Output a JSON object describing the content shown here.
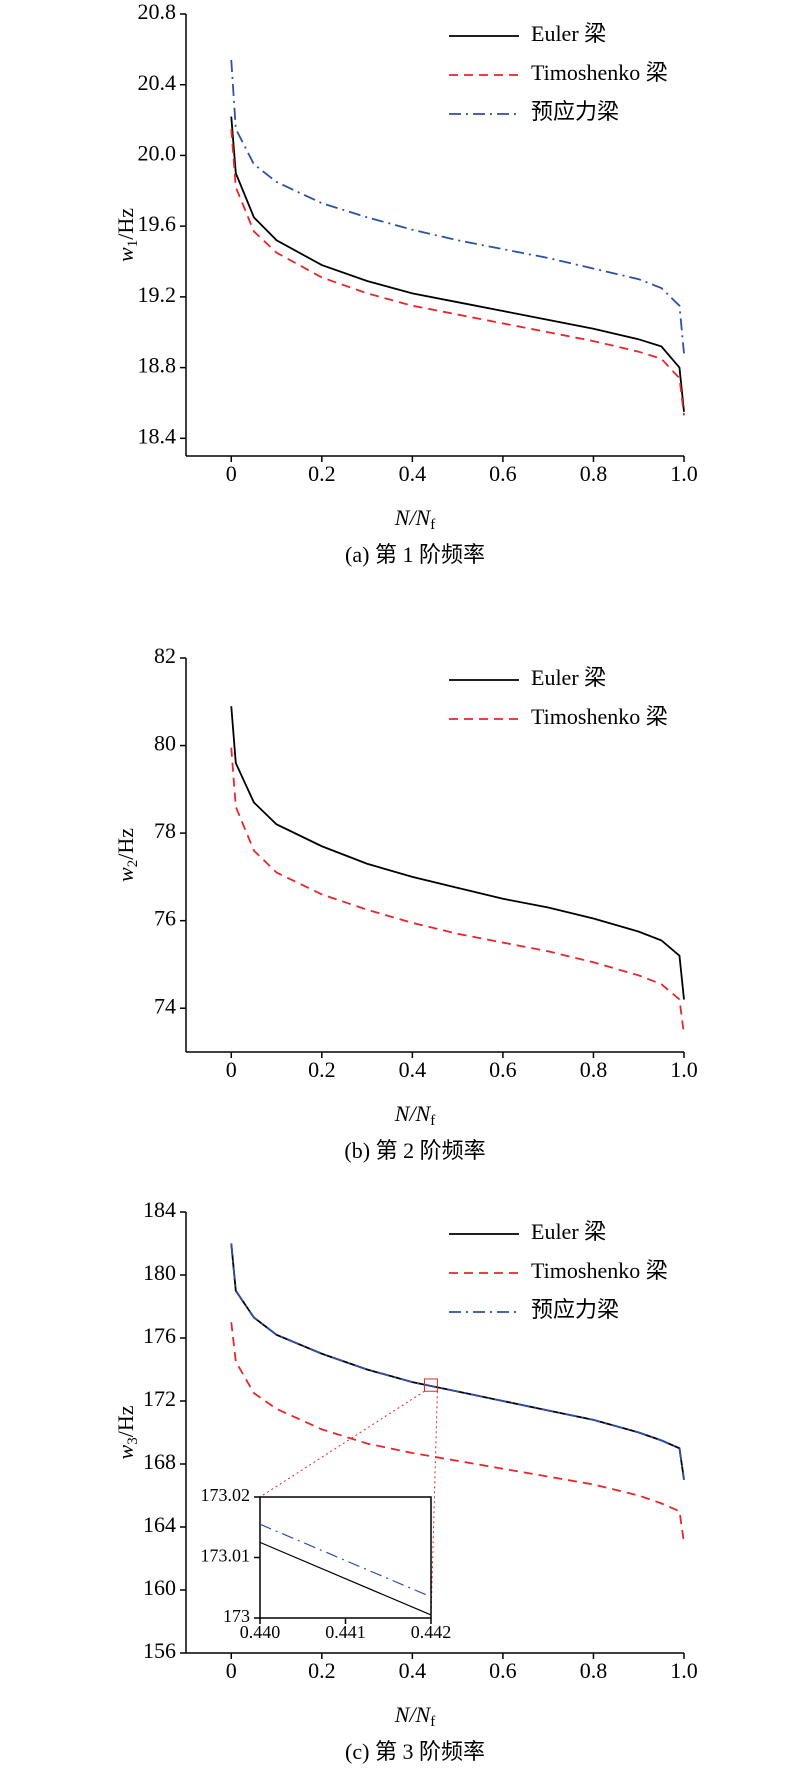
{
  "chart_data": [
    {
      "type": "line",
      "legend": "upper right",
      "ylabel": {
        "symbol": "w",
        "sub": "1",
        "unit": "/Hz"
      },
      "xlabel": {
        "symbol": "N/N",
        "sub": "f"
      },
      "caption": "(a) 第 1 阶频率",
      "x": [
        0,
        0.01,
        0.05,
        0.1,
        0.2,
        0.3,
        0.4,
        0.5,
        0.6,
        0.7,
        0.8,
        0.9,
        0.95,
        0.99,
        1.0
      ],
      "series": [
        {
          "name": "Euler 梁",
          "color": "#000000",
          "linestyle": "solid",
          "values": [
            20.22,
            19.9,
            19.65,
            19.52,
            19.38,
            19.29,
            19.22,
            19.17,
            19.12,
            19.07,
            19.02,
            18.96,
            18.92,
            18.8,
            18.55
          ]
        },
        {
          "name": "Timoshenko 梁",
          "color": "#e8262a",
          "linestyle": "dashed",
          "values": [
            20.15,
            19.82,
            19.57,
            19.45,
            19.31,
            19.22,
            19.15,
            19.1,
            19.05,
            19.0,
            18.95,
            18.89,
            18.85,
            18.74,
            18.53
          ]
        },
        {
          "name": "预应力梁",
          "color": "#2e4fa6",
          "linestyle": "dashdot",
          "values": [
            20.54,
            20.15,
            19.95,
            19.85,
            19.73,
            19.65,
            19.58,
            19.52,
            19.47,
            19.42,
            19.36,
            19.3,
            19.25,
            19.15,
            18.88
          ]
        }
      ],
      "xlim": [
        -0.1,
        1.0
      ],
      "xticks": [
        0,
        0.2,
        0.4,
        0.6,
        0.8,
        {
          "value": 1,
          "label": "1.0"
        }
      ],
      "ylim": [
        18.3,
        20.8
      ],
      "yticks": [
        18.4,
        18.8,
        19.2,
        19.6,
        {
          "value": 20,
          "label": "20.0"
        },
        20.4,
        20.8
      ]
    },
    {
      "type": "line",
      "legend": "upper right",
      "ylabel": {
        "symbol": "w",
        "sub": "2",
        "unit": "/Hz"
      },
      "xlabel": {
        "symbol": "N/N",
        "sub": "f"
      },
      "caption": "(b) 第 2 阶频率",
      "x": [
        0,
        0.01,
        0.05,
        0.1,
        0.2,
        0.3,
        0.4,
        0.5,
        0.6,
        0.7,
        0.8,
        0.9,
        0.95,
        0.99,
        1.0
      ],
      "series": [
        {
          "name": "Euler 梁",
          "color": "#000000",
          "linestyle": "solid",
          "values": [
            80.9,
            79.6,
            78.7,
            78.2,
            77.7,
            77.3,
            77.0,
            76.75,
            76.5,
            76.3,
            76.05,
            75.75,
            75.55,
            75.2,
            74.2
          ]
        },
        {
          "name": "Timoshenko 梁",
          "color": "#e8262a",
          "linestyle": "dashed",
          "values": [
            79.95,
            78.6,
            77.6,
            77.1,
            76.6,
            76.25,
            75.95,
            75.7,
            75.5,
            75.3,
            75.05,
            74.75,
            74.55,
            74.2,
            73.4
          ]
        }
      ],
      "xlim": [
        -0.1,
        1.0
      ],
      "xticks": [
        0,
        0.2,
        0.4,
        0.6,
        0.8,
        {
          "value": 1,
          "label": "1.0"
        }
      ],
      "ylim": [
        73,
        82
      ],
      "yticks": [
        74,
        76,
        78,
        80,
        82
      ]
    },
    {
      "type": "line",
      "legend": "upper right",
      "ylabel": {
        "symbol": "w",
        "sub": "3",
        "unit": "/Hz"
      },
      "xlabel": {
        "symbol": "N/N",
        "sub": "f"
      },
      "caption": "(c) 第 3 阶频率",
      "x": [
        0,
        0.01,
        0.05,
        0.1,
        0.2,
        0.3,
        0.4,
        0.5,
        0.6,
        0.7,
        0.8,
        0.9,
        0.95,
        0.99,
        1.0
      ],
      "series": [
        {
          "name": "Euler 梁",
          "color": "#000000",
          "linestyle": "solid",
          "values": [
            182,
            179,
            177.3,
            176.2,
            175,
            174,
            173.2,
            172.6,
            172,
            171.4,
            170.8,
            170,
            169.5,
            169,
            167
          ]
        },
        {
          "name": "Timoshenko 梁",
          "color": "#e8262a",
          "linestyle": "dashed",
          "values": [
            177,
            174.5,
            172.5,
            171.5,
            170.2,
            169.3,
            168.7,
            168.2,
            167.7,
            167.2,
            166.7,
            166,
            165.5,
            165,
            163
          ]
        },
        {
          "name": "预应力梁",
          "color": "#2e4fa6",
          "linestyle": "dashdot",
          "values": [
            182,
            179,
            177.3,
            176.2,
            175,
            174,
            173.2,
            172.6,
            172,
            171.4,
            170.8,
            170,
            169.5,
            169,
            167
          ]
        }
      ],
      "xlim": [
        -0.1,
        1.0
      ],
      "xticks": [
        0,
        0.2,
        0.4,
        0.6,
        0.8,
        {
          "value": 1,
          "label": "1.0"
        }
      ],
      "ylim": [
        156,
        184
      ],
      "yticks": [
        156,
        160,
        164,
        168,
        172,
        176,
        180,
        184
      ],
      "inset": {
        "x": [
          0.44,
          0.442
        ],
        "series": [
          {
            "color": "#000000",
            "linestyle": "solid",
            "values": [
              173.0125,
              173.0005
            ]
          },
          {
            "color": "#2e4fa6",
            "linestyle": "dashdot",
            "values": [
              173.0155,
              173.0035
            ]
          }
        ],
        "xlim": [
          0.44,
          0.442
        ],
        "xticks": [
          {
            "value": 0.44,
            "label": "0.440"
          },
          0.441,
          0.442
        ],
        "ylim": [
          173,
          173.02
        ],
        "yticks": [
          173,
          173.01,
          173.02
        ]
      }
    }
  ]
}
